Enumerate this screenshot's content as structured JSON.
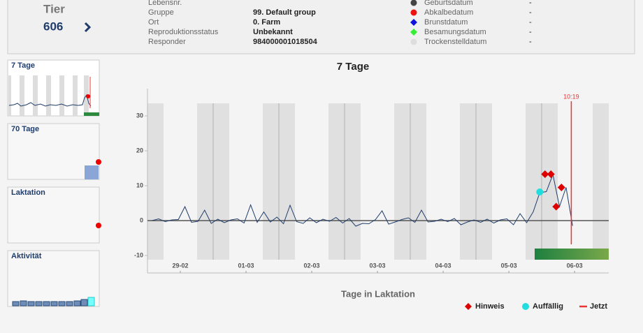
{
  "header": {
    "tier_label": "Tier",
    "tier_number": "606",
    "fields": [
      {
        "label": "Lebensnr."
      },
      {
        "label": "Gruppe",
        "value": "99. Default group"
      },
      {
        "label": "Ort",
        "value": "0. Farm"
      },
      {
        "label": "Reproduktionsstatus",
        "value": "Unbekannt"
      },
      {
        "label": "Responder",
        "value": "984000001018504"
      }
    ],
    "dates": [
      {
        "label": "Geburtsdatum",
        "value": "-",
        "color": "#444444",
        "shape": "circle"
      },
      {
        "label": "Abkalbedatum",
        "value": "-",
        "color": "#ee1111",
        "shape": "circle"
      },
      {
        "label": "Brunstdatum",
        "value": "-",
        "color": "#1111dd",
        "shape": "diamond"
      },
      {
        "label": "Besamungsdatum",
        "value": "-",
        "color": "#33ee33",
        "shape": "diamond"
      },
      {
        "label": "Trockenstelldatum",
        "value": "-",
        "color": "#dddddd",
        "shape": "circle"
      }
    ]
  },
  "sidebar": [
    "7 Tage",
    "70 Tage",
    "Laktation",
    "Aktivität"
  ],
  "chart_data": {
    "type": "line",
    "title": "7 Tage",
    "x_label": "Tage in Laktation",
    "color": "#1f3d6b",
    "xlim": [
      -0.5,
      6.52
    ],
    "ylim": [
      -15,
      38
    ],
    "xticks": [
      {
        "value": 0,
        "label": "29-02"
      },
      {
        "value": 1,
        "label": "01-03"
      },
      {
        "value": 2,
        "label": "02-03"
      },
      {
        "value": 3,
        "label": "03-03"
      },
      {
        "value": 4,
        "label": "04-03"
      },
      {
        "value": 5,
        "label": "05-03"
      },
      {
        "value": 6,
        "label": "06-03"
      }
    ],
    "yticks": [
      30,
      20,
      10,
      0,
      -10
    ],
    "x": [
      -0.43,
      -0.33,
      -0.23,
      -0.13,
      -0.03,
      0.07,
      0.17,
      0.27,
      0.37,
      0.47,
      0.57,
      0.67,
      0.77,
      0.87,
      0.97,
      1.07,
      1.17,
      1.27,
      1.37,
      1.47,
      1.57,
      1.67,
      1.77,
      1.87,
      1.97,
      2.07,
      2.17,
      2.27,
      2.37,
      2.47,
      2.57,
      2.67,
      2.77,
      2.87,
      2.97,
      3.07,
      3.17,
      3.27,
      3.37,
      3.47,
      3.57,
      3.67,
      3.77,
      3.87,
      3.97,
      4.07,
      4.17,
      4.27,
      4.37,
      4.47,
      4.57,
      4.67,
      4.77,
      4.87,
      4.97,
      5.07,
      5.17,
      5.27,
      5.37,
      5.47,
      5.57,
      5.67,
      5.77,
      5.87,
      5.97
    ],
    "values": [
      0,
      0.5,
      -0.3,
      0.2,
      0.3,
      4,
      -0.5,
      -0.2,
      3,
      -0.8,
      0.4,
      -0.6,
      0.2,
      0.5,
      -0.7,
      4.5,
      -0.5,
      2.5,
      -0.4,
      1,
      -0.9,
      4.4,
      -0.3,
      -0.8,
      0.8,
      -0.6,
      0.4,
      -0.2,
      0.9,
      -0.7,
      0.6,
      -1.6,
      -0.8,
      -0.9,
      0.3,
      2.8,
      -1,
      -0.4,
      0.3,
      0.8,
      -0.5,
      3,
      -0.4,
      -0.2,
      0.4,
      -0.3,
      0.6,
      -1.2,
      -0.4,
      0.2,
      -0.5,
      0.4,
      -0.7,
      0.2,
      0.5,
      -1.2,
      2,
      -0.6,
      2.5,
      8,
      8.3,
      13.2,
      4,
      9.5,
      -1.5
    ],
    "markers": [
      {
        "name": "Hinweis",
        "color": "#dd0000",
        "shape": "diamond",
        "x": [
          5.55,
          5.64,
          5.72,
          5.8
        ],
        "values": [
          13.3,
          13.3,
          4,
          9.5
        ]
      },
      {
        "name": "Auffällig",
        "color": "#22dddd",
        "shape": "circle",
        "x": [
          5.47
        ],
        "values": [
          8.2
        ]
      }
    ],
    "now": {
      "name": "Jetzt",
      "label": "10:19",
      "color": "#ee3333",
      "x": 5.95
    }
  }
}
